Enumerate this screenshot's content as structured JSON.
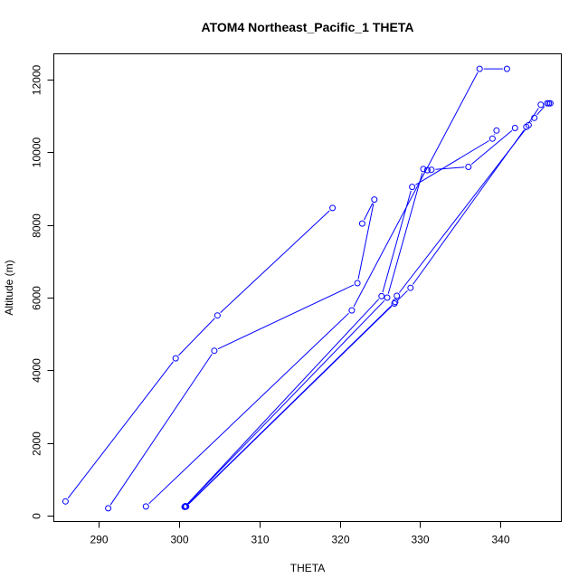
{
  "chart_data": {
    "type": "line",
    "title": "ATOM4 Northeast_Pacific_1 THETA",
    "xlabel": "THETA",
    "ylabel": "Altitude (m)",
    "xlim": [
      284.5,
      347.5
    ],
    "ylim": [
      -150,
      12700
    ],
    "xticks": [
      290,
      300,
      310,
      320,
      330,
      340
    ],
    "yticks": [
      0,
      2000,
      4000,
      6000,
      8000,
      10000,
      12000
    ],
    "color": "#0000ff",
    "grid": false,
    "series": [
      {
        "x": [
          285.9,
          299.6,
          304.8,
          319.1
        ],
        "y": [
          390,
          4330,
          5510,
          8470
        ]
      },
      {
        "x": [
          291.2,
          304.4,
          322.2,
          324.3,
          322.8
        ],
        "y": [
          200,
          4540,
          6400,
          8700,
          8040
        ]
      },
      {
        "x": [
          295.9,
          321.5,
          337.4,
          340.8
        ],
        "y": [
          250,
          5650,
          12300,
          12300
        ]
      },
      {
        "x": [
          300.7,
          325.2,
          329.0,
          339.0,
          339.5
        ],
        "y": [
          240,
          6040,
          9050,
          10380,
          10600
        ]
      },
      {
        "x": [
          300.8,
          325.9,
          330.4,
          330.9,
          331.4,
          336.0,
          341.8
        ],
        "y": [
          260,
          6000,
          9540,
          9510,
          9520,
          9600,
          10670
        ]
      },
      {
        "x": [
          300.9,
          326.8,
          328.8,
          343.2,
          345.0
        ],
        "y": [
          250,
          5840,
          6270,
          10700,
          11310
        ]
      },
      {
        "x": [
          300.8,
          326.9,
          327.1,
          343.5,
          344.2,
          345.8,
          346.0,
          346.2
        ],
        "y": [
          240,
          5880,
          6050,
          10750,
          10950,
          11350,
          11350,
          11350
        ]
      }
    ]
  }
}
